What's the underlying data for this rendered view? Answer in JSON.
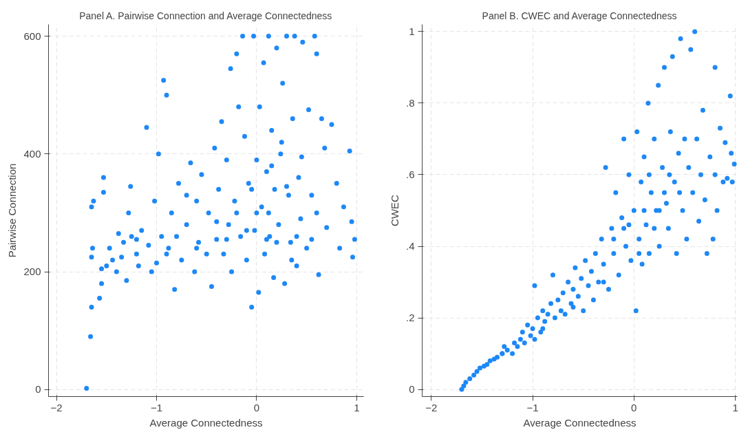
{
  "chart_data": [
    {
      "type": "scatter",
      "title": "Panel A. Pairwise Connection and Average Connectedness",
      "xlabel": "Average Connectedness",
      "ylabel": "Pairwise Connection",
      "marker": "circle",
      "grid": true,
      "xlim": [
        -2.08,
        1.07
      ],
      "ylim": [
        -12,
        620
      ],
      "xticks": [
        -2,
        -1,
        0,
        1
      ],
      "yticks": [
        0,
        200,
        400,
        600
      ],
      "series": [
        {
          "color": "#1e88f5",
          "x": [
            -1.7,
            -1.66,
            -1.65,
            -1.65,
            -1.64,
            -1.65,
            -1.63,
            -1.57,
            -1.55,
            -1.55,
            -1.53,
            -1.53,
            -1.5,
            -1.47,
            -1.44,
            -1.4,
            -1.38,
            -1.35,
            -1.33,
            -1.3,
            -1.28,
            -1.26,
            -1.25,
            -1.2,
            -1.18,
            -1.15,
            -1.1,
            -1.08,
            -1.05,
            -1.02,
            -1.0,
            -0.98,
            -0.95,
            -0.93,
            -0.9,
            -0.88,
            -0.85,
            -0.82,
            -0.8,
            -0.78,
            -0.75,
            -0.7,
            -0.66,
            -0.62,
            -0.6,
            -0.58,
            -0.55,
            -0.5,
            -0.48,
            -0.45,
            -0.42,
            -0.4,
            -0.38,
            -0.35,
            -0.33,
            -0.3,
            -0.28,
            -0.26,
            -0.25,
            -0.22,
            -0.2,
            -0.18,
            -0.16,
            -0.14,
            -0.12,
            -0.1,
            -0.08,
            -0.05,
            -0.03,
            -0.02,
            0.0,
            0.02,
            0.03,
            0.05,
            0.07,
            0.08,
            0.1,
            0.12,
            0.13,
            0.15,
            0.17,
            0.18,
            0.2,
            0.22,
            0.24,
            0.26,
            0.28,
            0.3,
            0.32,
            0.34,
            0.36,
            0.38,
            0.4,
            0.42,
            0.44,
            0.46,
            0.5,
            0.52,
            0.55,
            0.58,
            0.6,
            0.62,
            0.65,
            0.68,
            0.7,
            0.75,
            0.8,
            0.83,
            0.87,
            0.93,
            0.95,
            0.96,
            0.98,
            0.6,
            0.1,
            -0.1,
            0.2,
            -0.3,
            0.4,
            -0.6,
            -0.9,
            -1.2,
            0.3,
            0.0,
            -0.2,
            0.25,
            0.15,
            -0.05,
            0.45,
            0.12,
            -0.4,
            -0.7,
            0.55,
            0.35
          ],
          "values": [
            2,
            90,
            140,
            225,
            240,
            310,
            320,
            155,
            180,
            205,
            335,
            360,
            210,
            240,
            220,
            200,
            265,
            225,
            250,
            185,
            300,
            345,
            260,
            230,
            210,
            270,
            445,
            245,
            200,
            320,
            215,
            400,
            260,
            525,
            500,
            240,
            300,
            170,
            260,
            350,
            220,
            280,
            385,
            200,
            320,
            250,
            365,
            230,
            300,
            175,
            410,
            255,
            340,
            455,
            230,
            390,
            280,
            545,
            200,
            320,
            570,
            480,
            260,
            600,
            430,
            220,
            350,
            140,
            600,
            270,
            390,
            165,
            480,
            310,
            555,
            230,
            370,
            600,
            260,
            440,
            190,
            340,
            580,
            280,
            400,
            520,
            180,
            600,
            330,
            250,
            460,
            600,
            210,
            360,
            290,
            590,
            240,
            475,
            330,
            600,
            570,
            195,
            460,
            410,
            275,
            450,
            350,
            240,
            310,
            405,
            285,
            225,
            255,
            300,
            255,
            270,
            250,
            255,
            260,
            240,
            230,
            255,
            345,
            300,
            300,
            420,
            380,
            340,
            395,
            300,
            285,
            330,
            255,
            220
          ]
        }
      ]
    },
    {
      "type": "scatter",
      "title": "Panel B. CWEC and Average Connectedness",
      "xlabel": "Average Connectedness",
      "ylabel": "CWEC",
      "marker": "circle",
      "grid": true,
      "xlim": [
        -2.09,
        1.02
      ],
      "ylim": [
        -0.02,
        1.02
      ],
      "xticks": [
        -2,
        -1,
        0,
        1
      ],
      "yticks": [
        0,
        {
          "value": 0.2,
          "label": ".2"
        },
        {
          "value": 0.4,
          "label": ".4"
        },
        {
          "value": 0.6,
          "label": ".6"
        },
        {
          "value": 0.8,
          "label": ".8"
        },
        1
      ],
      "series": [
        {
          "color": "#1e88f5",
          "x": [
            -1.7,
            -1.68,
            -1.66,
            -1.62,
            -1.58,
            -1.55,
            -1.52,
            -1.48,
            -1.45,
            -1.42,
            -1.38,
            -1.35,
            -1.3,
            -1.28,
            -1.25,
            -1.2,
            -1.18,
            -1.15,
            -1.12,
            -1.1,
            -1.08,
            -1.05,
            -1.02,
            -1.0,
            -0.98,
            -0.98,
            -0.95,
            -0.92,
            -0.9,
            -0.88,
            -0.85,
            -0.82,
            -0.8,
            -0.78,
            -0.75,
            -0.72,
            -0.7,
            -0.68,
            -0.65,
            -0.62,
            -0.6,
            -0.58,
            -0.55,
            -0.52,
            -0.5,
            -0.48,
            -0.45,
            -0.42,
            -0.4,
            -0.38,
            -0.35,
            -0.32,
            -0.3,
            -0.28,
            -0.25,
            -0.22,
            -0.2,
            -0.18,
            -0.15,
            -0.12,
            -0.1,
            -0.08,
            -0.05,
            -0.03,
            0.0,
            0.02,
            0.03,
            0.05,
            0.07,
            0.08,
            0.1,
            0.12,
            0.14,
            0.15,
            0.17,
            0.2,
            0.22,
            0.24,
            0.25,
            0.28,
            0.3,
            0.32,
            0.34,
            0.36,
            0.38,
            0.4,
            0.42,
            0.44,
            0.46,
            0.48,
            0.5,
            0.52,
            0.54,
            0.56,
            0.58,
            0.6,
            0.62,
            0.64,
            0.66,
            0.68,
            0.7,
            0.72,
            0.75,
            0.78,
            0.8,
            0.82,
            0.85,
            0.88,
            0.9,
            0.92,
            0.95,
            0.96,
            0.97,
            0.99,
            0.8,
            -0.1,
            0.1,
            0.2,
            -0.2,
            0.3,
            0.05,
            -0.05,
            0.15,
            0.35,
            0.45,
            0.25,
            -0.3,
            -0.6,
            -0.9,
            -1.3
          ],
          "values": [
            0.0,
            0.01,
            0.02,
            0.03,
            0.04,
            0.05,
            0.06,
            0.065,
            0.07,
            0.08,
            0.085,
            0.09,
            0.1,
            0.12,
            0.11,
            0.1,
            0.13,
            0.12,
            0.14,
            0.16,
            0.13,
            0.18,
            0.15,
            0.17,
            0.14,
            0.29,
            0.2,
            0.16,
            0.22,
            0.19,
            0.21,
            0.24,
            0.32,
            0.2,
            0.25,
            0.22,
            0.27,
            0.21,
            0.3,
            0.24,
            0.28,
            0.34,
            0.26,
            0.31,
            0.22,
            0.36,
            0.29,
            0.33,
            0.25,
            0.38,
            0.3,
            0.42,
            0.35,
            0.62,
            0.28,
            0.45,
            0.38,
            0.55,
            0.32,
            0.48,
            0.7,
            0.4,
            0.6,
            0.36,
            0.5,
            0.22,
            0.72,
            0.42,
            0.58,
            0.35,
            0.65,
            0.46,
            0.8,
            0.38,
            0.55,
            0.7,
            0.5,
            0.85,
            0.4,
            0.62,
            0.9,
            0.52,
            0.45,
            0.72,
            0.93,
            0.58,
            0.38,
            0.66,
            0.98,
            0.5,
            0.7,
            0.42,
            0.62,
            0.95,
            0.55,
            1.0,
            0.7,
            0.47,
            0.6,
            0.78,
            0.53,
            0.38,
            0.65,
            0.42,
            0.6,
            0.5,
            0.73,
            0.58,
            0.69,
            0.59,
            0.82,
            0.66,
            0.58,
            0.63,
            0.9,
            0.45,
            0.5,
            0.45,
            0.42,
            0.55,
            0.38,
            0.46,
            0.6,
            0.6,
            0.55,
            0.5,
            0.3,
            0.23,
            0.17,
            0.1
          ]
        }
      ]
    }
  ]
}
